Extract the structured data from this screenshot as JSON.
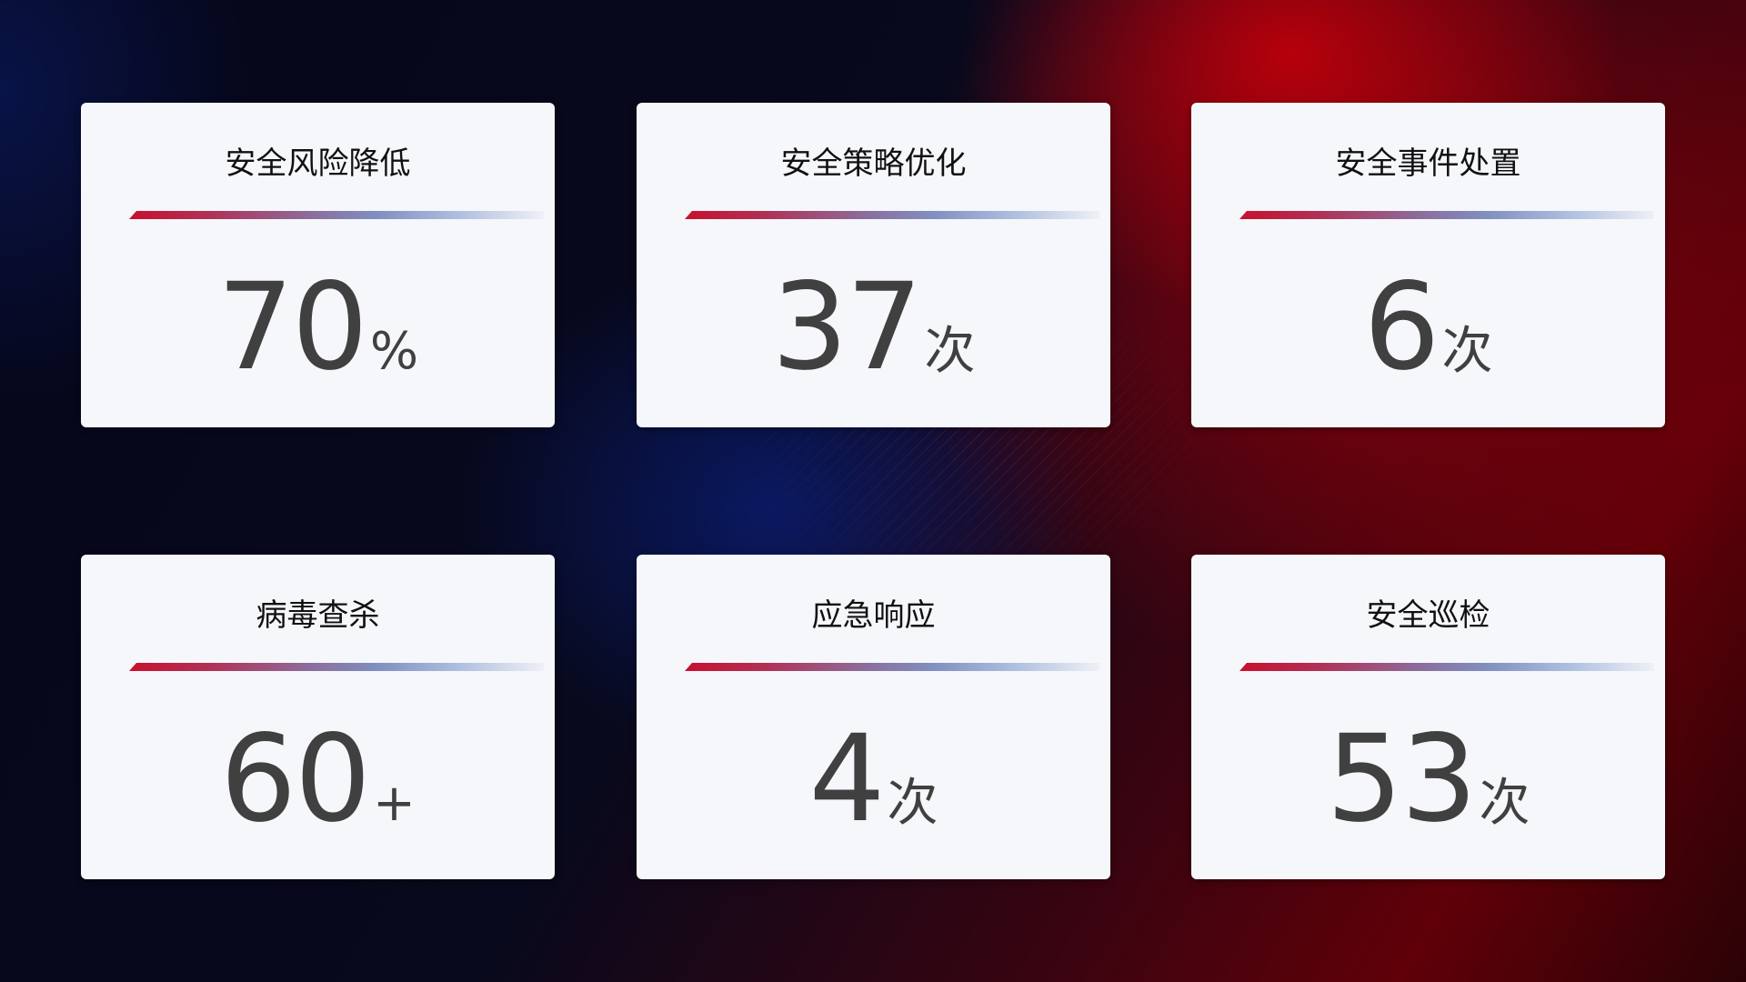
{
  "cards": [
    {
      "title": "安全风险降低",
      "value": "70",
      "unit": "%"
    },
    {
      "title": "安全策略优化",
      "value": "37",
      "unit": "次"
    },
    {
      "title": "安全事件处置",
      "value": "6",
      "unit": "次"
    },
    {
      "title": "病毒查杀",
      "value": "60",
      "unit": "+"
    },
    {
      "title": "应急响应",
      "value": "4",
      "unit": "次"
    },
    {
      "title": "安全巡检",
      "value": "53",
      "unit": "次"
    }
  ],
  "colors": {
    "accent_red": "#c8102e",
    "accent_blue": "#8090c0",
    "card_bg": "#f6f7fb",
    "value_text": "#404040"
  }
}
